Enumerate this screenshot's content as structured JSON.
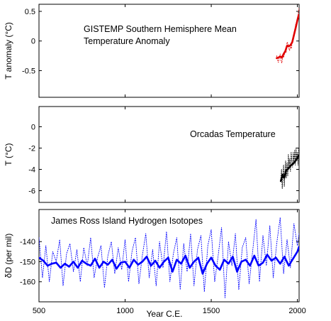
{
  "chart_data": [
    {
      "type": "line",
      "annotation": "GISTEMP Southern Hemisphere Mean\nTemperature Anomaly",
      "ylabel": "T anomaly (°C)",
      "xlim": [
        500,
        2010
      ],
      "ylim": [
        -0.95,
        0.62
      ],
      "yticks": [
        -0.5,
        0,
        0.5
      ],
      "ytick_labels": [
        "-0.5",
        "0",
        "0.5"
      ],
      "grid": false,
      "series": [
        {
          "style": "dotted",
          "color": "#e00000",
          "x": [
            1880,
            1885,
            1890,
            1895,
            1900,
            1905,
            1910,
            1915,
            1920,
            1925,
            1930,
            1935,
            1940,
            1945,
            1950,
            1955,
            1960,
            1965,
            1970,
            1975,
            1980,
            1985,
            1990,
            1995,
            2000,
            2005,
            2010
          ],
          "y": [
            -0.25,
            -0.32,
            -0.36,
            -0.28,
            -0.22,
            -0.34,
            -0.37,
            -0.25,
            -0.28,
            -0.22,
            -0.16,
            -0.19,
            -0.02,
            -0.04,
            -0.12,
            -0.16,
            -0.08,
            -0.13,
            -0.02,
            0.01,
            0.12,
            0.15,
            0.28,
            0.24,
            0.35,
            0.47,
            0.55
          ]
        },
        {
          "style": "solid",
          "color": "#e00000",
          "x": [
            1880,
            1890,
            1900,
            1910,
            1920,
            1930,
            1940,
            1950,
            1960,
            1970,
            1980,
            1990,
            2000,
            2008
          ],
          "y": [
            -0.29,
            -0.28,
            -0.26,
            -0.28,
            -0.22,
            -0.17,
            -0.08,
            -0.09,
            -0.07,
            -0.02,
            0.1,
            0.22,
            0.35,
            0.44
          ]
        }
      ]
    },
    {
      "type": "line",
      "annotation": "Orcadas Temperature",
      "ylabel": "T (°C)",
      "xlim": [
        500,
        2010
      ],
      "ylim": [
        -7.1,
        1.9
      ],
      "yticks": [
        -6,
        -4,
        -2,
        0
      ],
      "ytick_labels": [
        "-6",
        "-4",
        "-2",
        "0"
      ],
      "grid": false,
      "series": [
        {
          "style": "dotted",
          "color": "#000000",
          "x": [
            1904,
            1908,
            1912,
            1916,
            1920,
            1924,
            1928,
            1932,
            1936,
            1940,
            1944,
            1948,
            1952,
            1956,
            1960,
            1964,
            1968,
            1972,
            1976,
            1980,
            1984,
            1988,
            1992,
            1996,
            2000,
            2004,
            2008
          ],
          "y": [
            -5.0,
            -4.0,
            -5.8,
            -4.6,
            -3.6,
            -5.6,
            -4.2,
            -3.2,
            -4.8,
            -3.4,
            -4.6,
            -2.6,
            -3.8,
            -3.0,
            -4.2,
            -2.4,
            -3.2,
            -3.8,
            -2.4,
            -3.4,
            -2.2,
            -3.6,
            -2.0,
            -3.0,
            -2.4,
            -3.6,
            -2.0
          ]
        },
        {
          "style": "solid",
          "color": "#000000",
          "x": [
            1904,
            1914,
            1924,
            1934,
            1944,
            1954,
            1964,
            1974,
            1984,
            1994,
            2004,
            2008
          ],
          "y": [
            -5.1,
            -4.5,
            -4.8,
            -4.1,
            -4.0,
            -3.8,
            -3.6,
            -3.5,
            -3.3,
            -3.1,
            -2.8,
            -2.7
          ]
        }
      ]
    },
    {
      "type": "line",
      "annotation": "James Ross Island Hydrogen Isotopes",
      "ylabel": "δD (per mil)",
      "xlabel": "Year C.E.",
      "xlim": [
        500,
        2010
      ],
      "xticks": [
        500,
        1000,
        1500,
        2000
      ],
      "xtick_labels": [
        "500",
        "1000",
        "1500",
        "2000"
      ],
      "ylim": [
        -170,
        -124
      ],
      "yticks": [
        -160,
        -150,
        -140
      ],
      "ytick_labels": [
        "-160",
        "-150",
        "-140"
      ],
      "grid": false,
      "series": [
        {
          "style": "dotted",
          "color": "#0000ff",
          "x": [
            500,
            520,
            540,
            560,
            580,
            600,
            620,
            640,
            660,
            680,
            700,
            720,
            740,
            760,
            780,
            800,
            820,
            840,
            860,
            880,
            900,
            920,
            940,
            960,
            980,
            1000,
            1020,
            1040,
            1060,
            1080,
            1100,
            1120,
            1140,
            1160,
            1180,
            1200,
            1220,
            1240,
            1260,
            1280,
            1300,
            1320,
            1340,
            1360,
            1380,
            1400,
            1420,
            1440,
            1460,
            1480,
            1500,
            1520,
            1540,
            1560,
            1580,
            1600,
            1620,
            1640,
            1660,
            1680,
            1700,
            1720,
            1740,
            1760,
            1780,
            1800,
            1820,
            1840,
            1860,
            1880,
            1900,
            1920,
            1940,
            1960,
            1980,
            2000,
            2010
          ],
          "y": [
            -138,
            -158,
            -142,
            -160,
            -145,
            -150,
            -139,
            -162,
            -146,
            -141,
            -155,
            -144,
            -160,
            -143,
            -152,
            -138,
            -158,
            -148,
            -142,
            -163,
            -147,
            -140,
            -156,
            -143,
            -154,
            -139,
            -160,
            -145,
            -138,
            -161,
            -147,
            -136,
            -158,
            -144,
            -162,
            -140,
            -153,
            -135,
            -160,
            -146,
            -138,
            -164,
            -141,
            -155,
            -136,
            -162,
            -144,
            -137,
            -165,
            -142,
            -134,
            -160,
            -147,
            -133,
            -168,
            -140,
            -152,
            -136,
            -164,
            -143,
            -138,
            -161,
            -145,
            -129,
            -160,
            -137,
            -152,
            -132,
            -158,
            -141,
            -128,
            -156,
            -139,
            -153,
            -131,
            -142,
            -136
          ]
        },
        {
          "style": "solid",
          "color": "#0000ff",
          "x": [
            500,
            525,
            550,
            575,
            600,
            625,
            650,
            675,
            700,
            725,
            750,
            775,
            800,
            825,
            850,
            875,
            900,
            925,
            950,
            975,
            1000,
            1025,
            1050,
            1075,
            1100,
            1125,
            1150,
            1175,
            1200,
            1225,
            1250,
            1275,
            1300,
            1325,
            1350,
            1375,
            1400,
            1425,
            1450,
            1475,
            1500,
            1525,
            1550,
            1575,
            1600,
            1625,
            1650,
            1675,
            1700,
            1725,
            1750,
            1775,
            1800,
            1825,
            1850,
            1875,
            1900,
            1925,
            1950,
            1975,
            2000,
            2010
          ],
          "y": [
            -148,
            -149.5,
            -152,
            -151,
            -150.5,
            -153,
            -151,
            -152.5,
            -150,
            -153,
            -149.5,
            -151,
            -152,
            -148.5,
            -153,
            -150,
            -151.5,
            -149,
            -153.5,
            -150.5,
            -150,
            -153,
            -149,
            -151.5,
            -150,
            -147.5,
            -152,
            -149.5,
            -153,
            -150,
            -148,
            -155,
            -149,
            -151,
            -147,
            -153,
            -150,
            -148,
            -156,
            -151,
            -148,
            -152,
            -154,
            -149,
            -151,
            -147.5,
            -155,
            -150,
            -149,
            -152,
            -147,
            -152,
            -150.5,
            -146.5,
            -149.5,
            -148,
            -151,
            -147.5,
            -152,
            -148.5,
            -145,
            -142.5
          ]
        }
      ]
    }
  ]
}
